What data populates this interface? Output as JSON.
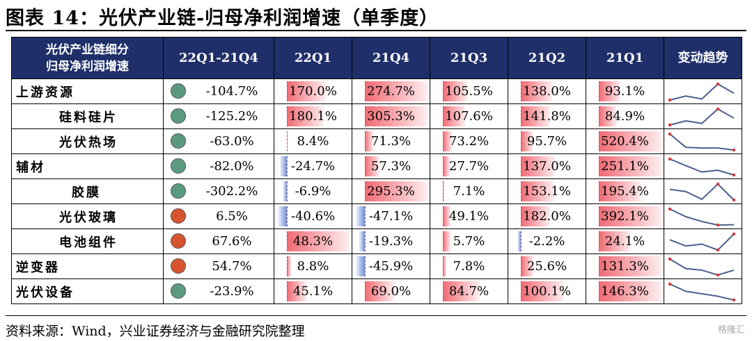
{
  "title": "图表 14：光伏产业链-归母净利润增速（单季度）",
  "header": {
    "first_line1": "光伏产业链细分",
    "first_line2": "归母净利润增速",
    "columns": [
      "22Q1-21Q4",
      "22Q1",
      "21Q4",
      "21Q3",
      "21Q2",
      "21Q1",
      "变动趋势"
    ]
  },
  "colors": {
    "header_bg": "#1f2f69",
    "green_dot": "#5a9a80",
    "red_dot": "#d6552f",
    "positive_bar": "#f06a73",
    "negative_bar": "#6f8fd6",
    "sparkline": "#4a5f8c",
    "spark_marker": "#d8343c"
  },
  "chart_data": {
    "type": "table",
    "periods": [
      "22Q1",
      "21Q4",
      "21Q3",
      "21Q2",
      "21Q1"
    ],
    "rows": [
      {
        "name": "上游资源",
        "indent": 0,
        "dot": "green",
        "change": "-104.7%",
        "values": [
          "170.0%",
          "274.7%",
          "105.5%",
          "138.0%",
          "93.1%"
        ],
        "nums": [
          170.0,
          274.7,
          105.5,
          138.0,
          93.1
        ]
      },
      {
        "name": "硅料硅片",
        "indent": 1,
        "dot": "green",
        "change": "-125.2%",
        "values": [
          "180.1%",
          "305.3%",
          "107.6%",
          "141.8%",
          "84.9%"
        ],
        "nums": [
          180.1,
          305.3,
          107.6,
          141.8,
          84.9
        ]
      },
      {
        "name": "光伏热场",
        "indent": 1,
        "dot": "green",
        "change": "-63.0%",
        "values": [
          "8.4%",
          "71.3%",
          "73.2%",
          "95.7%",
          "520.4%"
        ],
        "nums": [
          8.4,
          71.3,
          73.2,
          95.7,
          520.4
        ]
      },
      {
        "name": "辅材",
        "indent": 0,
        "dot": "green",
        "change": "-82.0%",
        "values": [
          "-24.7%",
          "57.3%",
          "27.7%",
          "137.0%",
          "251.1%"
        ],
        "nums": [
          -24.7,
          57.3,
          27.7,
          137.0,
          251.1
        ]
      },
      {
        "name": "胶膜",
        "indent": 2,
        "dot": "green",
        "change": "-302.2%",
        "values": [
          "-6.9%",
          "295.3%",
          "7.1%",
          "153.1%",
          "195.4%"
        ],
        "nums": [
          -6.9,
          295.3,
          7.1,
          153.1,
          195.4
        ]
      },
      {
        "name": "光伏玻璃",
        "indent": 1,
        "dot": "red",
        "change": "6.5%",
        "values": [
          "-40.6%",
          "-47.1%",
          "49.1%",
          "182.0%",
          "392.1%"
        ],
        "nums": [
          -40.6,
          -47.1,
          49.1,
          182.0,
          392.1
        ]
      },
      {
        "name": "电池组件",
        "indent": 1,
        "dot": "red",
        "change": "67.6%",
        "values": [
          "48.3%",
          "-19.3%",
          "5.7%",
          "-2.2%",
          "24.1%"
        ],
        "nums": [
          48.3,
          -19.3,
          5.7,
          -2.2,
          24.1
        ]
      },
      {
        "name": "逆变器",
        "indent": 0,
        "dot": "red",
        "change": "54.7%",
        "values": [
          "8.8%",
          "-45.9%",
          "7.8%",
          "25.6%",
          "131.3%"
        ],
        "nums": [
          8.8,
          -45.9,
          7.8,
          25.6,
          131.3
        ]
      },
      {
        "name": "光伏设备",
        "indent": 0,
        "dot": "green",
        "change": "-23.9%",
        "values": [
          "45.1%",
          "69.0%",
          "84.7%",
          "100.1%",
          "146.3%"
        ],
        "nums": [
          45.1,
          69.0,
          84.7,
          100.1,
          146.3
        ]
      }
    ]
  },
  "source": "资料来源：Wind，兴业证券经济与金融研究院整理",
  "watermark": "格隆汇"
}
